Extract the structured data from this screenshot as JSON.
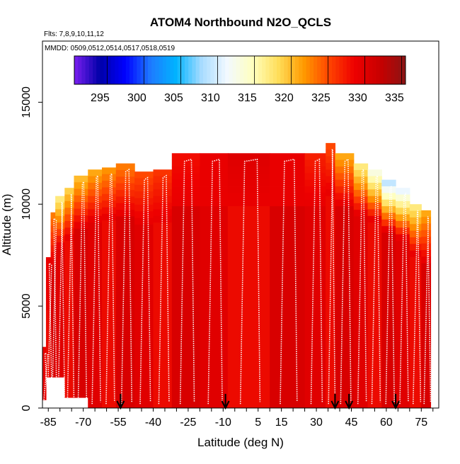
{
  "chart_data": {
    "type": "heatmap",
    "title": "ATOM4 Northbound N2O_QCLS",
    "subtitle_flights": "Flts: 7,8,9,10,11,12",
    "subtitle_dates": "MMDD: 0509,0512,0514,0517,0518,0519",
    "xlabel": "Latitude (deg N)",
    "ylabel": "Altitude (m)",
    "xlim": [
      -87.5,
      82.5
    ],
    "ylim": [
      0,
      18000
    ],
    "x_ticks": [
      -85,
      -70,
      -55,
      -40,
      -25,
      -10,
      5,
      15,
      30,
      45,
      60,
      75
    ],
    "y_ticks": [
      0,
      5000,
      10000,
      15000
    ],
    "colorbar": {
      "ticks": [
        295,
        300,
        305,
        310,
        315,
        320,
        325,
        330,
        335
      ],
      "range": [
        291.5,
        336.5
      ],
      "colors": [
        "#7a1ff0",
        "#0000a8",
        "#0000ff",
        "#1e7bff",
        "#00b4ff",
        "#a9dcff",
        "#f2f9ff",
        "#ffffbf",
        "#ffde5a",
        "#ff9a00",
        "#ff4400",
        "#ee0000",
        "#c80000",
        "#8b1414"
      ]
    },
    "flight_markers_lat": [
      -54,
      -9,
      38,
      44,
      64
    ],
    "profile_columns": [
      {
        "x": [
          -87.5,
          -86
        ],
        "top": 3000,
        "value": 330
      },
      {
        "x": [
          -86,
          -84
        ],
        "top": 7400,
        "value": 330
      },
      {
        "x": [
          -84,
          -82
        ],
        "top": 9600,
        "value": 324
      },
      {
        "x": [
          -82,
          -78
        ],
        "top": 10400,
        "value": 318
      },
      {
        "x": [
          -78,
          -74
        ],
        "top": 10800,
        "value": 320
      },
      {
        "x": [
          -74,
          -68
        ],
        "top": 11400,
        "value": 321
      },
      {
        "x": [
          -68,
          -62
        ],
        "top": 11700,
        "value": 322
      },
      {
        "x": [
          -62,
          -56
        ],
        "top": 11800,
        "value": 323
      },
      {
        "x": [
          -56,
          -48
        ],
        "top": 12000,
        "value": 324
      },
      {
        "x": [
          -48,
          -40
        ],
        "top": 11600,
        "value": 326
      },
      {
        "x": [
          -40,
          -32
        ],
        "top": 11700,
        "value": 327
      },
      {
        "x": [
          -32,
          -20
        ],
        "top": 12500,
        "value": 329
      },
      {
        "x": [
          -20,
          -8
        ],
        "top": 12500,
        "value": 330
      },
      {
        "x": [
          -8,
          10
        ],
        "top": 12500,
        "value": 331
      },
      {
        "x": [
          10,
          25
        ],
        "top": 12500,
        "value": 330
      },
      {
        "x": [
          25,
          34
        ],
        "top": 12500,
        "value": 328
      },
      {
        "x": [
          34,
          38
        ],
        "top": 13000,
        "value": 326
      },
      {
        "x": [
          38,
          46
        ],
        "top": 12500,
        "value": 322
      },
      {
        "x": [
          46,
          52
        ],
        "top": 12000,
        "value": 318
      },
      {
        "x": [
          52,
          58
        ],
        "top": 11700,
        "value": 314
      },
      {
        "x": [
          58,
          64
        ],
        "top": 11200,
        "value": 310
      },
      {
        "x": [
          64,
          70
        ],
        "top": 10800,
        "value": 312
      },
      {
        "x": [
          70,
          75
        ],
        "top": 10000,
        "value": 318
      },
      {
        "x": [
          75,
          79
        ],
        "top": 9700,
        "value": 322
      }
    ]
  }
}
